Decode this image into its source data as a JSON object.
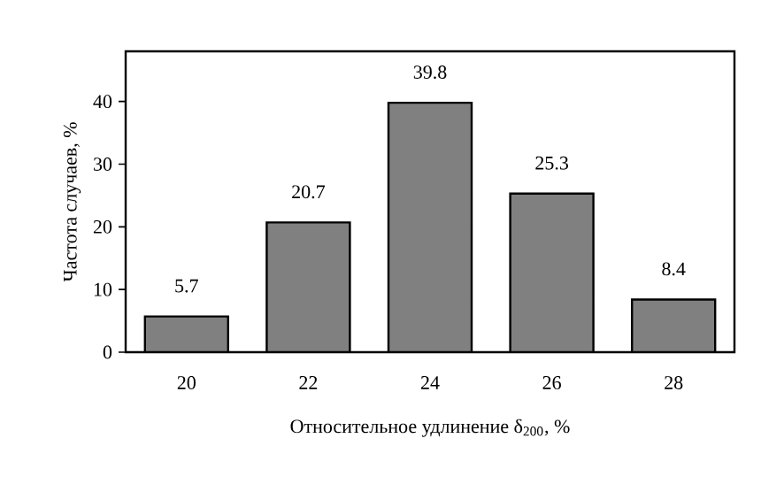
{
  "chart_data": {
    "type": "bar",
    "xlabel": "Относительное удлинение δ$_{200}$, %",
    "ylabel": "Частота случаев, %",
    "categories": [
      "20",
      "22",
      "24",
      "26",
      "28"
    ],
    "values": [
      5.7,
      20.7,
      39.8,
      25.3,
      8.4
    ],
    "color": "#808080",
    "ylim": [
      0,
      48
    ],
    "yticks": [
      0,
      10,
      20,
      30,
      40
    ],
    "data_labels": true,
    "grid": false
  }
}
